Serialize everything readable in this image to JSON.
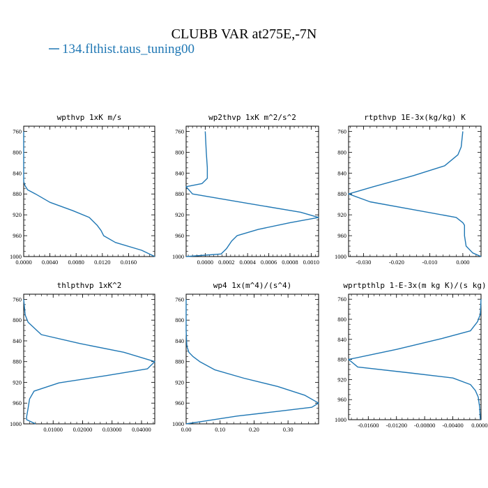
{
  "figure": {
    "title": "CLUBB VAR at275E,-7N",
    "legend": {
      "label": "134.flthist.taus_tuning00",
      "color": "#1f77b4"
    }
  },
  "chart_data": [
    {
      "type": "line",
      "title": "wpthvp  1xK m/s",
      "xlim": [
        0,
        0.02
      ],
      "xticks": [
        0,
        0.004,
        0.008,
        0.012,
        0.016
      ],
      "xticklabels": [
        "0.0000",
        "0.0040",
        "0.0080",
        "0.0120",
        "0.0160"
      ],
      "ylim": [
        1000,
        750
      ],
      "yticks": [
        760,
        800,
        840,
        880,
        920,
        960,
        1000
      ],
      "yticklabels": [
        "760",
        "800",
        "840",
        "880",
        "920",
        "960",
        "1000"
      ],
      "series": [
        {
          "x": [
            0,
            0,
            0,
            0,
            0.0002,
            0.0006,
            0.0018,
            0.004,
            0.0075,
            0.01,
            0.0112,
            0.0118,
            0.0122,
            0.014,
            0.018,
            0.02
          ],
          "y": [
            760,
            800,
            840,
            856,
            864,
            872,
            880,
            896,
            912,
            925,
            940,
            950,
            960,
            973,
            988,
            1000
          ]
        }
      ]
    },
    {
      "type": "line",
      "title": "wp2thvp  1xK m^2/s^2",
      "xlim": [
        -0.00018,
        0.00107
      ],
      "xticks": [
        0,
        0.0002,
        0.0004,
        0.0006,
        0.0008,
        0.001
      ],
      "xticklabels": [
        "0.0000",
        "0.0002",
        "0.0004",
        "0.0006",
        "0.0008",
        "0.0010"
      ],
      "ylim": [
        1000,
        750
      ],
      "yticks": [
        760,
        800,
        840,
        880,
        920,
        960,
        1000
      ],
      "yticklabels": [
        "760",
        "800",
        "840",
        "880",
        "920",
        "960",
        "1000"
      ],
      "series": [
        {
          "x": [
            0.0,
            1e-05,
            2e-05,
            2e-05,
            -3e-05,
            -0.00018,
            -0.00012,
            0.0004,
            0.0009,
            0.00107,
            0.0008,
            0.0005,
            0.0003,
            0.00025,
            0.0002,
            0.00015,
            -0.00018
          ],
          "y": [
            760,
            800,
            830,
            850,
            860,
            866,
            880,
            898,
            915,
            925,
            935,
            948,
            960,
            970,
            985,
            995,
            1000
          ]
        }
      ]
    },
    {
      "type": "line",
      "title": "rtpthvp  1E-3x(kg/kg) K",
      "xlim": [
        -0.0345,
        0.0055
      ],
      "xticks": [
        -0.03,
        -0.02,
        -0.01,
        0.0
      ],
      "xticklabels": [
        "-0.030",
        "-0.020",
        "-0.010",
        "0.000"
      ],
      "ylim": [
        1000,
        750
      ],
      "yticks": [
        760,
        800,
        840,
        880,
        920,
        960,
        1000
      ],
      "yticklabels": [
        "760",
        "800",
        "840",
        "880",
        "920",
        "960",
        "1000"
      ],
      "series": [
        {
          "x": [
            0.0,
            -0.0005,
            -0.0015,
            -0.0055,
            -0.015,
            -0.027,
            -0.0345,
            -0.028,
            -0.015,
            -0.002,
            0.0,
            0.0005,
            0.0005,
            0.001,
            0.003,
            0.0055
          ],
          "y": [
            760,
            790,
            805,
            826,
            845,
            866,
            880,
            895,
            910,
            925,
            935,
            940,
            960,
            980,
            993,
            1000
          ]
        }
      ]
    },
    {
      "type": "line",
      "title": "thlpthvp  1xK^2",
      "xlim": [
        0,
        0.0445
      ],
      "xticks": [
        0.01,
        0.02,
        0.03,
        0.04
      ],
      "xticklabels": [
        "0.01000",
        "0.02000",
        "0.03000",
        "0.04000"
      ],
      "ylim": [
        1000,
        750
      ],
      "yticks": [
        760,
        800,
        840,
        880,
        920,
        960,
        1000
      ],
      "yticklabels": [
        "760",
        "800",
        "840",
        "880",
        "920",
        "960",
        "1000"
      ],
      "series": [
        {
          "x": [
            0.0,
            0.0005,
            0.0015,
            0.006,
            0.019,
            0.034,
            0.0445,
            0.042,
            0.028,
            0.012,
            0.0035,
            0.002,
            0.0015,
            0.001,
            0.001,
            0.0025,
            0.004
          ],
          "y": [
            760,
            790,
            804,
            828,
            845,
            862,
            880,
            894,
            907,
            921,
            937,
            952,
            970,
            986,
            992,
            996,
            1000
          ]
        }
      ]
    },
    {
      "type": "line",
      "title": "wp4  1x(m^4)/(s^4)",
      "xlim": [
        0,
        0.39
      ],
      "xticks": [
        0.0,
        0.1,
        0.2,
        0.3
      ],
      "xticklabels": [
        "0.00",
        "0.10",
        "0.20",
        "0.30"
      ],
      "ylim": [
        1000,
        750
      ],
      "yticks": [
        760,
        800,
        840,
        880,
        920,
        960,
        1000
      ],
      "yticklabels": [
        "760",
        "800",
        "840",
        "880",
        "920",
        "960",
        "1000"
      ],
      "series": [
        {
          "x": [
            0.0,
            0.0,
            0.002,
            0.008,
            0.02,
            0.04,
            0.085,
            0.17,
            0.27,
            0.35,
            0.39,
            0.37,
            0.27,
            0.15,
            0.05,
            0.0
          ],
          "y": [
            760,
            820,
            850,
            862,
            870,
            880,
            896,
            912,
            928,
            945,
            960,
            968,
            976,
            985,
            995,
            1000
          ]
        }
      ]
    },
    {
      "type": "line",
      "title": "wprtpthlp  1-E-3x(m kg K)/(s kg)",
      "xlim": [
        -0.0188,
        0.0
      ],
      "xticks": [
        -0.016,
        -0.012,
        -0.008,
        -0.004,
        0.0
      ],
      "xticklabels": [
        "-0.01600",
        "-0.01200",
        "-0.00800",
        "-0.00400",
        "0.00000"
      ],
      "ylim": [
        1000,
        750
      ],
      "yticks": [
        760,
        800,
        840,
        880,
        920,
        960,
        1000
      ],
      "yticklabels": [
        "760",
        "800",
        "840",
        "880",
        "920",
        "960",
        "1000"
      ],
      "series": [
        {
          "x": [
            0.0,
            -0.0001,
            -0.0005,
            -0.0015,
            -0.0055,
            -0.012,
            -0.0188,
            -0.0175,
            -0.01,
            -0.004,
            -0.0015,
            -0.0008,
            -0.0004,
            -0.0002,
            -0.0001
          ],
          "y": [
            760,
            790,
            805,
            823,
            838,
            860,
            880,
            895,
            907,
            917,
            930,
            942,
            955,
            975,
            1000
          ]
        }
      ]
    }
  ]
}
